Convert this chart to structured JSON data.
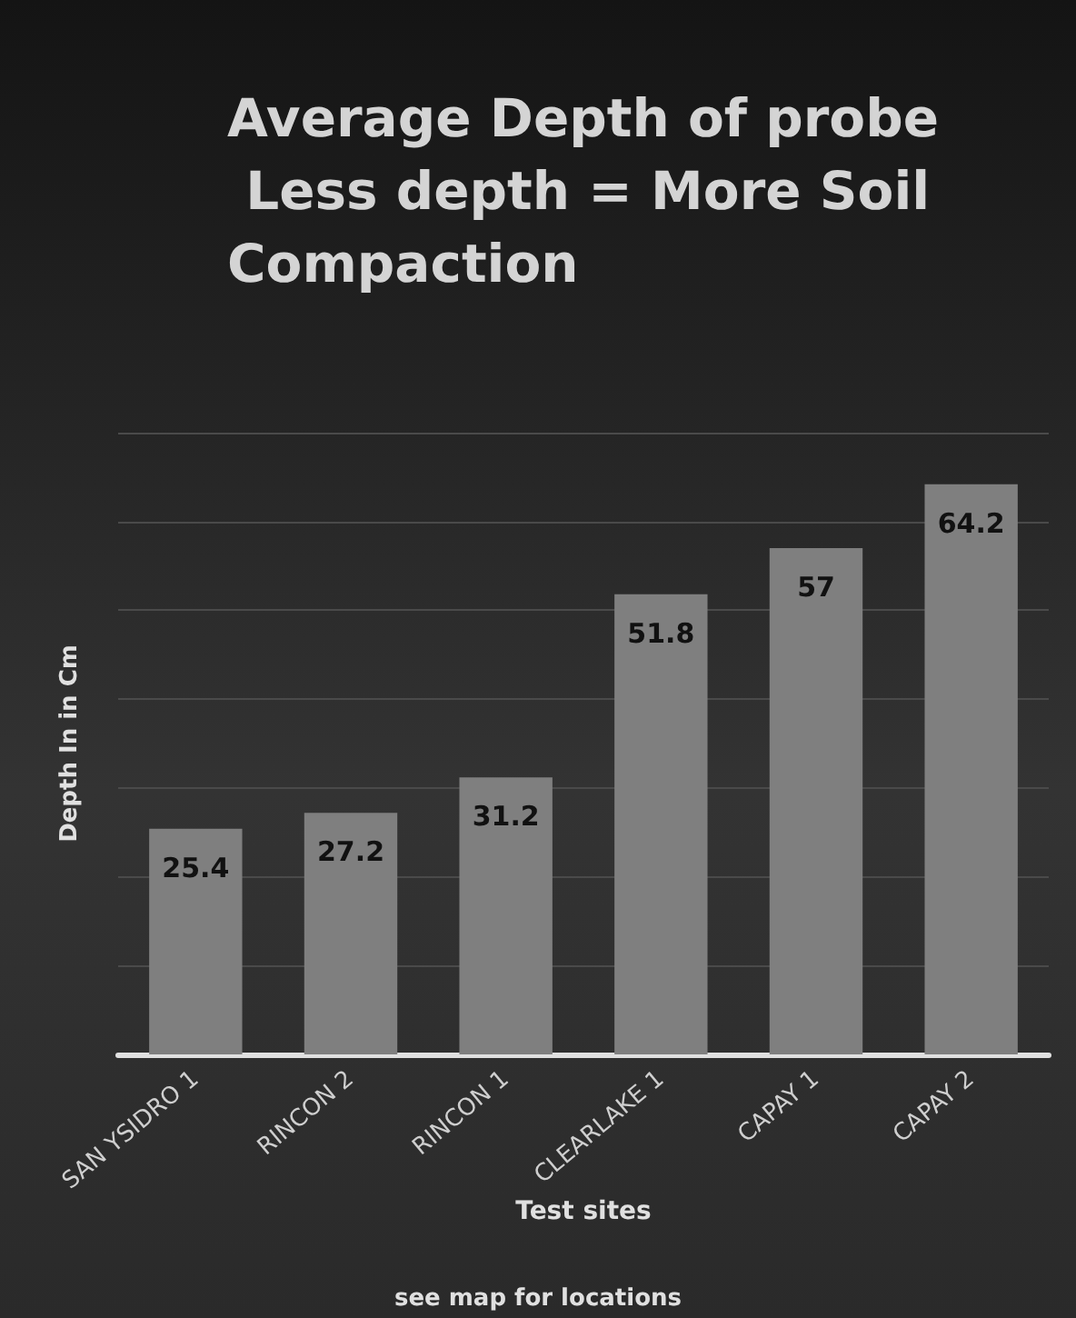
{
  "chart_data": {
    "type": "bar",
    "title": "Average Depth of probe Less depth = More Soil Compaction",
    "xlabel": "Test sites",
    "ylabel": "Depth In in Cm",
    "annotations": [
      "see map for locations"
    ],
    "categories": [
      "SAN YSIDRO 1",
      "RINCON 2",
      "RINCON 1",
      "CLEARLAKE 1",
      "CAPAY 1",
      "CAPAY 2"
    ],
    "values": [
      25.4,
      27.2,
      31.2,
      51.8,
      57,
      64.2
    ],
    "color": "#7f7f7f",
    "ylim": [
      0,
      70
    ],
    "yticks": [
      {
        "value": 0,
        "label": null
      },
      {
        "value": 10,
        "label": null
      },
      {
        "value": 20,
        "label": null
      },
      {
        "value": 30,
        "label": null
      },
      {
        "value": 40,
        "label": null
      },
      {
        "value": 50,
        "label": null
      },
      {
        "value": 60,
        "label": null
      },
      {
        "value": 70,
        "label": null
      }
    ],
    "grid": "y",
    "tick_labels": "x",
    "data_labels": true
  }
}
